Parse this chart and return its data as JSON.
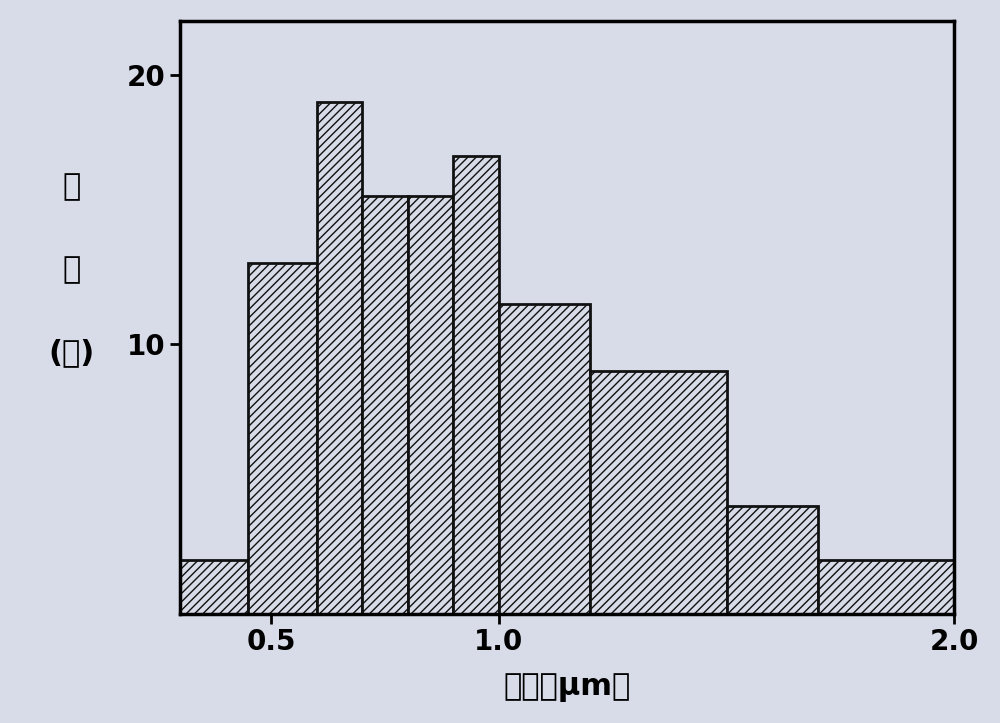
{
  "bar_lefts": [
    0.3,
    0.45,
    0.6,
    0.7,
    0.8,
    0.9,
    1.0,
    1.2,
    1.5,
    1.7
  ],
  "bar_widths": [
    0.15,
    0.15,
    0.1,
    0.1,
    0.1,
    0.1,
    0.2,
    0.3,
    0.2,
    0.3
  ],
  "bar_heights": [
    2.0,
    13.0,
    19.0,
    15.5,
    15.5,
    17.0,
    11.5,
    9.0,
    4.0,
    2.0
  ],
  "bar_facecolor": "#d8dce8",
  "bar_edgecolor": "#111111",
  "hatch_pattern": "////",
  "xlabel": "粒径（μm）",
  "ylabel_line1": "占",
  "ylabel_line2": "比",
  "ylabel_line3": "(％)",
  "xlim": [
    0.3,
    2.0
  ],
  "ylim": [
    0,
    22
  ],
  "xticks": [
    0.5,
    1.0,
    2.0
  ],
  "yticks": [
    10,
    20
  ],
  "background_color": "#d8dce8",
  "axes_bg_color": "#d8dce8",
  "bar_linewidth": 2.0,
  "spine_linewidth": 2.5,
  "xlabel_fontsize": 22,
  "ylabel_fontsize": 22,
  "tick_fontsize": 20,
  "figsize": [
    10.0,
    7.23
  ]
}
